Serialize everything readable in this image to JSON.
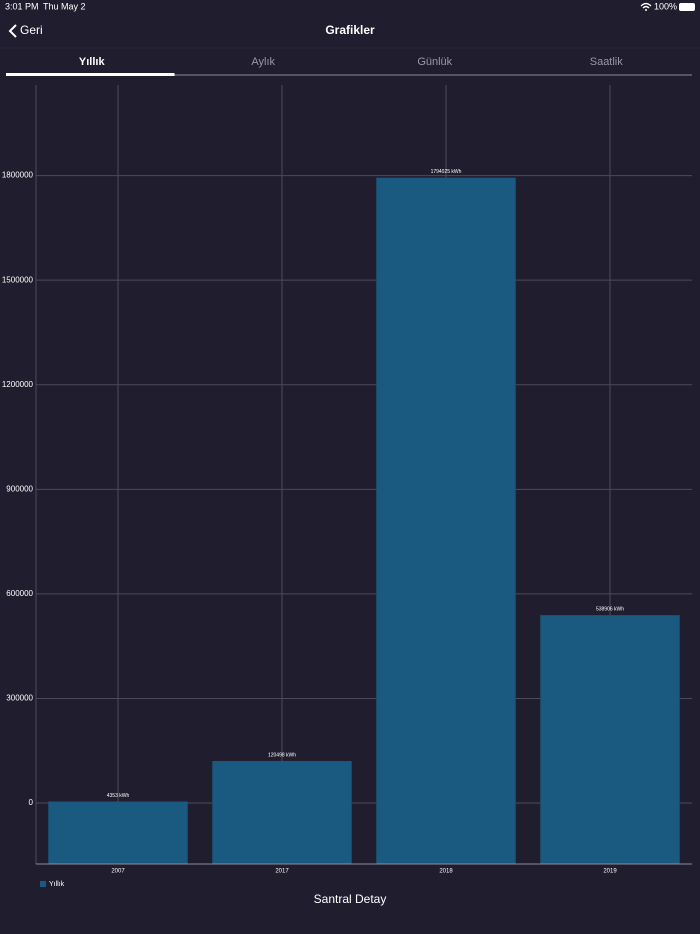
{
  "status_bar": {
    "time": "3:01 PM",
    "date": "Thu May 2",
    "battery": "100%"
  },
  "nav": {
    "back": "Geri",
    "title": "Grafikler"
  },
  "tabs": {
    "items": [
      "Yıllık",
      "Aylık",
      "Günlük",
      "Saatlik"
    ],
    "selected": 0
  },
  "chart_data": {
    "type": "bar",
    "categories": [
      "2007",
      "2017",
      "2018",
      "2019"
    ],
    "series": [
      {
        "name": "Yıllık",
        "color": "#1b5a80",
        "values": [
          4353,
          120498,
          1794025,
          538906
        ],
        "value_labels": [
          "4353 kWh",
          "120498 kWh",
          "1794025 kWh",
          "538906 kWh"
        ]
      }
    ],
    "ylim": [
      -175000,
      2060000
    ],
    "yticks": [
      0,
      300000,
      600000,
      900000,
      1200000,
      1500000,
      1800000
    ],
    "grid": true,
    "legend": "bottom-left"
  },
  "footer": "Santral Detay"
}
